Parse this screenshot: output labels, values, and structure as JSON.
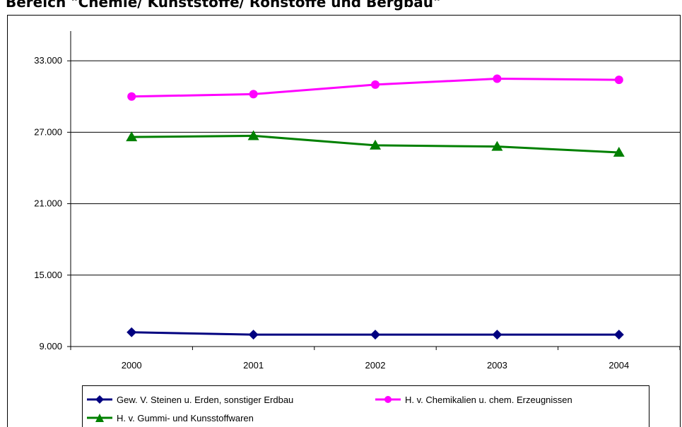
{
  "title": "Bereich \"Chemie/ Kunststoffe/ Rohstoffe und Bergbau\"",
  "chart_data": {
    "type": "line",
    "categories": [
      "2000",
      "2001",
      "2002",
      "2003",
      "2004"
    ],
    "y_ticks": [
      "9.000",
      "15.000",
      "21.000",
      "27.000",
      "33.000"
    ],
    "ylim": [
      9000,
      35500
    ],
    "grid": true,
    "legend_position": "bottom",
    "series": [
      {
        "name": "Gew. V. Steinen u. Erden, sonstiger Erdbau",
        "values": [
          10200,
          10000,
          10000,
          10000,
          10000
        ],
        "color": "#000080",
        "marker": "diamond"
      },
      {
        "name": "H. v. Chemikalien u. chem. Erzeugnissen",
        "values": [
          30000,
          30200,
          31000,
          31500,
          31400
        ],
        "color": "#ff00ff",
        "marker": "circle"
      },
      {
        "name": "H. v. Gummi- und Kunsstoffwaren",
        "values": [
          26600,
          26700,
          25900,
          25800,
          25300
        ],
        "color": "#008000",
        "marker": "triangle"
      }
    ]
  }
}
